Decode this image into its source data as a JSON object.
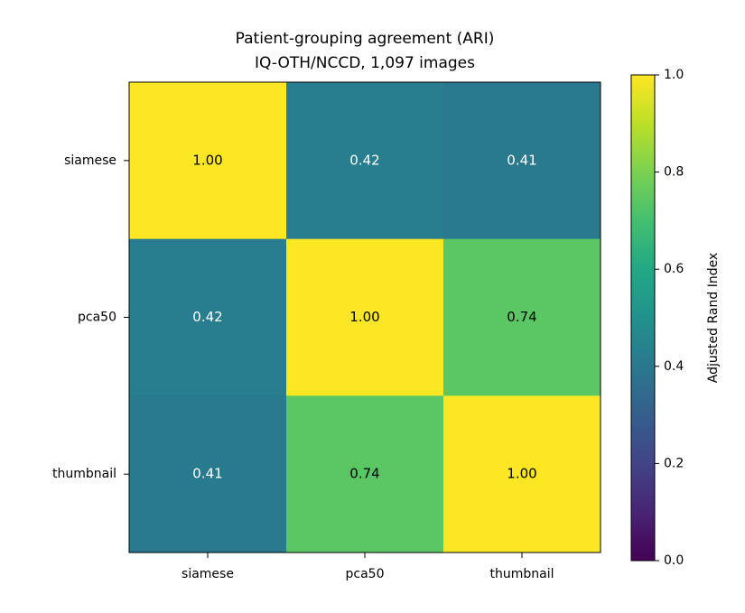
{
  "chart_data": {
    "type": "heatmap",
    "title": "Patient-grouping agreement (ARI)",
    "subtitle": "IQ-OTH/NCCD, 1,097 images",
    "x_categories": [
      "siamese",
      "pca50",
      "thumbnail"
    ],
    "y_categories": [
      "siamese",
      "pca50",
      "thumbnail"
    ],
    "values": [
      [
        1,
        0.42,
        0.41
      ],
      [
        0.42,
        1,
        0.74
      ],
      [
        0.41,
        0.74,
        1
      ]
    ],
    "value_labels": [
      [
        "1.00",
        "0.42",
        "0.41"
      ],
      [
        "0.42",
        "1.00",
        "0.74"
      ],
      [
        "0.41",
        "0.74",
        "1.00"
      ]
    ],
    "colormap": "viridis",
    "colorbar_label": "Adjusted Rand Index",
    "clim": [
      0,
      1
    ],
    "cticks": [
      {
        "value": 0,
        "label": "0.0"
      },
      0.2,
      0.4,
      0.6,
      0.8,
      {
        "value": 1,
        "label": "1.0"
      }
    ]
  }
}
